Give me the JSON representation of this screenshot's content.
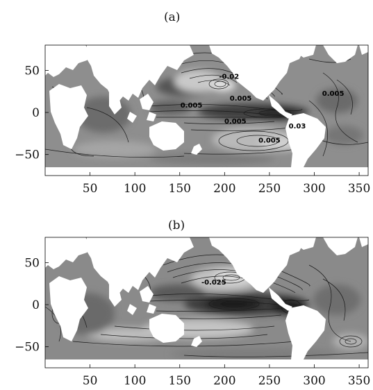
{
  "chart_data": [
    {
      "type": "contour",
      "panel_label": "(a)",
      "xticks": [
        50,
        100,
        150,
        200,
        250,
        300,
        350
      ],
      "yticks": [
        50,
        0,
        -50
      ],
      "xlim": [
        0,
        360
      ],
      "ylim": [
        -75,
        80
      ],
      "contour_labels": [
        {
          "text": "-0.02",
          "x": 205,
          "y": 40
        },
        {
          "text": "0.005",
          "x": 163,
          "y": 6
        },
        {
          "text": "0.005",
          "x": 218,
          "y": 14
        },
        {
          "text": "0.005",
          "x": 212,
          "y": -13
        },
        {
          "text": "0.005",
          "x": 250,
          "y": -36
        },
        {
          "text": "0.03",
          "x": 281,
          "y": -19
        },
        {
          "text": "0.005",
          "x": 321,
          "y": 20
        }
      ]
    },
    {
      "type": "contour",
      "panel_label": "(b)",
      "xticks": [
        50,
        100,
        150,
        200,
        250,
        300,
        350
      ],
      "yticks": [
        50,
        0,
        -50
      ],
      "xlim": [
        0,
        360
      ],
      "ylim": [
        -75,
        80
      ],
      "contour_labels": [
        {
          "text": "-0.025",
          "x": 188,
          "y": 24
        }
      ]
    }
  ]
}
